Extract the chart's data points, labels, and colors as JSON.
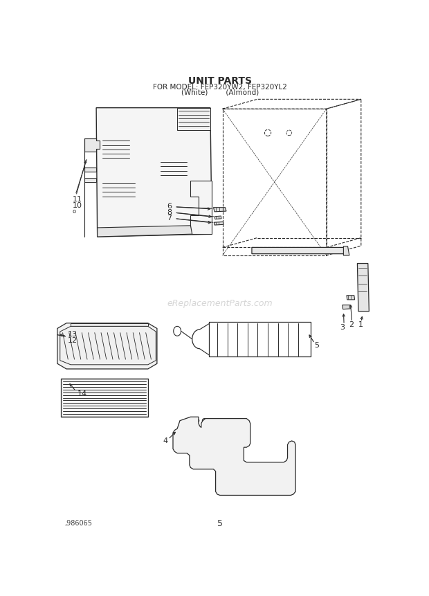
{
  "title_line1": "UNIT PARTS",
  "title_line2": "FOR MODEL: FEP320YW2, FEP320YL2",
  "title_line3": "(White)        (Almond)",
  "watermark": "eReplacementParts.com",
  "footer_left": ",986065",
  "footer_center": "5",
  "bg_color": "#ffffff",
  "line_color": "#2a2a2a"
}
